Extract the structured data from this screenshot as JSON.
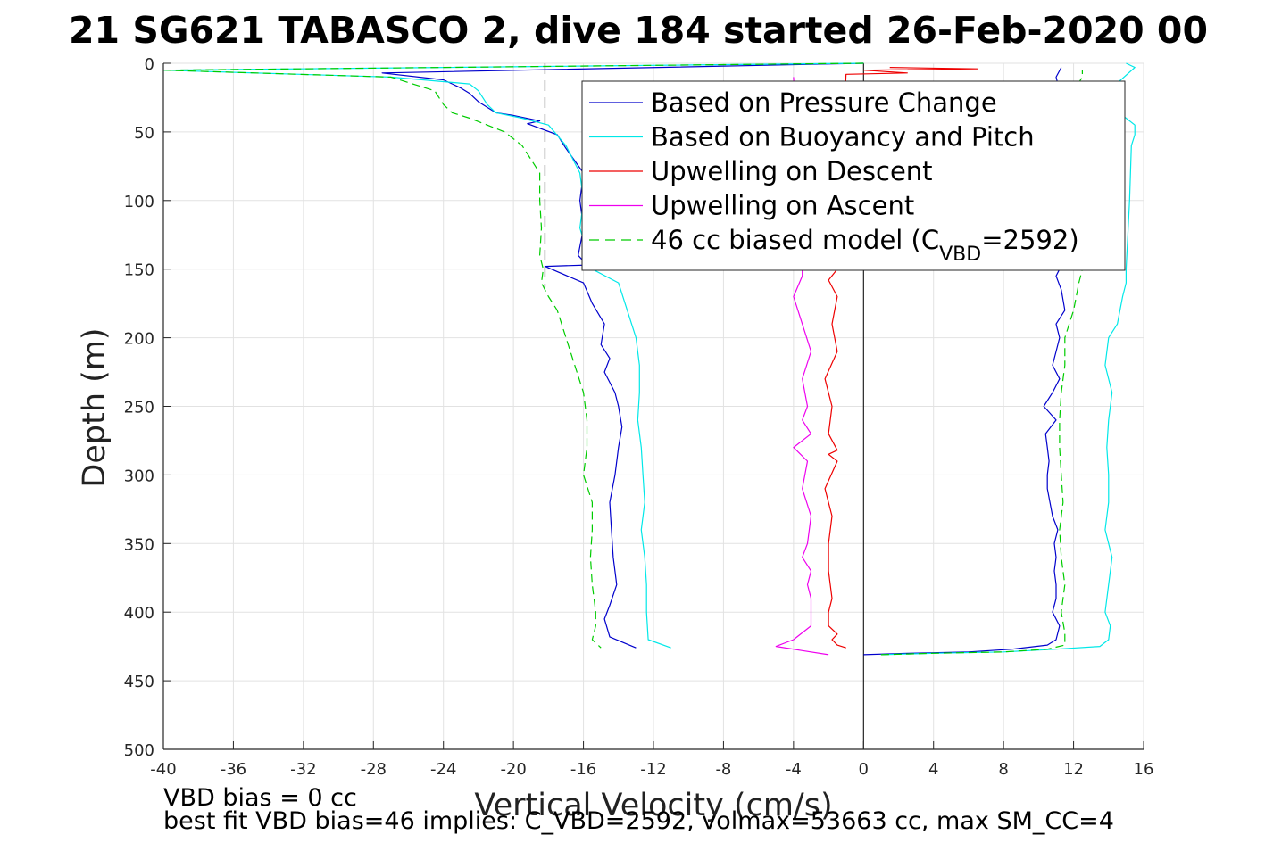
{
  "chart_data": {
    "type": "line",
    "title": "21 SG621 TABASCO 2, dive 184 started 26-Feb-2020 00",
    "xlabel": "Vertical Velocity (cm/s)",
    "ylabel": "Depth (m)",
    "xlim": [
      -40,
      16
    ],
    "ylim": [
      500,
      0
    ],
    "y_reversed": true,
    "xticks": [
      "-40",
      "-36",
      "-32",
      "-28",
      "-24",
      "-20",
      "-16",
      "-12",
      "-8",
      "-4",
      "0",
      "4",
      "8",
      "12",
      "16"
    ],
    "yticks": [
      "0",
      "50",
      "100",
      "150",
      "200",
      "250",
      "300",
      "350",
      "400",
      "450",
      "500"
    ],
    "grid": true,
    "legend_position": "top-right",
    "reference_lines": {
      "zero_x": 0,
      "dashed_x": -18.2,
      "dashed_depth_range": [
        0,
        163
      ]
    },
    "series": [
      {
        "name": "Based on Pressure Change",
        "color": "#0000cc",
        "dash": "solid",
        "descent": {
          "x": [
            0.0,
            -27.5,
            -24.0,
            -23.0,
            -22.5,
            -22.0,
            -21.5,
            -21.0,
            -20.0,
            -18.5,
            -19.2,
            -17.5,
            -17.0,
            -16.0,
            -16.2,
            -16.0,
            -16.3,
            -15.8,
            -18.2,
            -16.0,
            -15.5,
            -14.8,
            -15.0,
            -14.5,
            -14.8,
            -14.2,
            -14.0,
            -13.8,
            -14.0,
            -14.2,
            -14.5,
            -14.4,
            -14.3,
            -14.1,
            -14.5,
            -14.8,
            -14.5,
            -13.0
          ],
          "y": [
            0,
            7,
            12,
            18,
            22,
            28,
            32,
            36,
            38,
            42,
            44,
            52,
            62,
            80,
            100,
            120,
            140,
            147,
            148,
            160,
            175,
            190,
            205,
            215,
            225,
            240,
            250,
            265,
            280,
            300,
            320,
            340,
            360,
            380,
            395,
            405,
            418,
            426
          ]
        },
        "ascent": {
          "x": [
            0.0,
            2.5,
            6.0,
            8.5,
            10.5,
            11.0,
            11.2,
            10.8,
            11.0,
            11.0,
            10.9,
            11.0,
            10.9,
            11.1,
            10.8,
            10.5,
            10.5,
            10.6,
            10.5,
            10.4,
            11.0,
            10.3,
            10.8,
            11.2,
            10.8,
            11.0,
            11.2,
            11.0,
            11.5,
            11.3,
            11.0,
            11.2,
            11.0,
            11.2,
            11.0,
            11.3
          ],
          "y": [
            431,
            430,
            429,
            427,
            424,
            420,
            410,
            400,
            390,
            380,
            370,
            360,
            350,
            340,
            330,
            310,
            300,
            290,
            280,
            270,
            260,
            250,
            240,
            230,
            220,
            210,
            200,
            190,
            180,
            165,
            155,
            150,
            30,
            20,
            10,
            3
          ]
        }
      },
      {
        "name": "Based on Buoyancy and Pitch",
        "color": "#00e8e8",
        "dash": "solid",
        "descent": {
          "x": [
            0.0,
            -40.0,
            -27.0,
            -22.5,
            -22.0,
            -21.5,
            -21.0,
            -19.5,
            -18.0,
            -17.0,
            -16.2,
            -16.0,
            -16.2,
            -15.5,
            -14.0,
            -13.5,
            -13.0,
            -12.8,
            -12.8,
            -12.9,
            -12.7,
            -12.6,
            -12.5,
            -12.7,
            -12.5,
            -12.4,
            -12.4,
            -12.3,
            -11.0
          ],
          "y": [
            0,
            5,
            10,
            15,
            20,
            30,
            36,
            40,
            45,
            60,
            80,
            100,
            120,
            150,
            160,
            180,
            200,
            220,
            240,
            260,
            280,
            300,
            320,
            340,
            360,
            380,
            400,
            420,
            426
          ]
        },
        "ascent": {
          "x": [
            1.0,
            4.0,
            8.0,
            11.0,
            13.5,
            14.0,
            14.1,
            13.8,
            14.0,
            14.2,
            13.8,
            14.0,
            14.0,
            13.9,
            14.0,
            14.2,
            13.8,
            14.0,
            14.5,
            14.8,
            15.0,
            15.0,
            15.2,
            15.3,
            15.5,
            15.5,
            14.5,
            14.0,
            15.5,
            15.0
          ],
          "y": [
            431,
            430,
            429,
            427,
            425,
            420,
            410,
            400,
            380,
            360,
            340,
            320,
            300,
            280,
            260,
            240,
            220,
            200,
            190,
            170,
            160,
            150,
            100,
            60,
            52,
            45,
            35,
            20,
            3,
            0
          ]
        }
      },
      {
        "name": "Upwelling on Descent",
        "color": "#ee0000",
        "dash": "solid",
        "descent": {
          "x": [
            1.5,
            6.5,
            0.0,
            2.5,
            -1.0,
            -1.5,
            -2.0,
            -1.5,
            -1.8,
            -1.5,
            -2.2,
            -1.8,
            -2.0,
            -1.5,
            -2.0,
            -1.5,
            -2.2,
            -1.8,
            -2.0,
            -2.0,
            -1.8,
            -2.0,
            -2.0,
            -1.5,
            -1.8,
            -1.5,
            -1.0
          ],
          "y": [
            3,
            4,
            5,
            7,
            8,
            150,
            158,
            170,
            190,
            210,
            230,
            250,
            270,
            282,
            285,
            290,
            310,
            330,
            350,
            370,
            390,
            400,
            410,
            416,
            420,
            424,
            426
          ]
        }
      },
      {
        "name": "Upwelling on Ascent",
        "color": "#ee00ee",
        "dash": "solid",
        "ascent": {
          "x": [
            -2.0,
            -3.5,
            -5.0,
            -4.0,
            -3.0,
            -3.0,
            -3.0,
            -3.2,
            -3.0,
            -3.5,
            -3.2,
            -3.0,
            -3.5,
            -3.2,
            -4.0,
            -3.0,
            -3.5,
            -3.2,
            -3.5,
            -3.0,
            -3.5,
            -4.0,
            -3.5,
            -3.5,
            -4.0
          ],
          "y": [
            431,
            428,
            425,
            420,
            410,
            400,
            390,
            380,
            370,
            360,
            350,
            330,
            310,
            290,
            280,
            270,
            260,
            250,
            230,
            210,
            190,
            170,
            155,
            150,
            10
          ]
        }
      },
      {
        "name": "46 cc biased model (C",
        "name_subscript": "VBD",
        "name_suffix": "=2592)",
        "color": "#00cc00",
        "dash": "dashed",
        "descent": {
          "x": [
            0.0,
            -40.0,
            -27.0,
            -24.5,
            -24.0,
            -23.5,
            -22.5,
            -21.5,
            -20.5,
            -19.5,
            -18.5,
            -18.5,
            -18.4,
            -18.5,
            -18.3,
            -18.4,
            -18.0,
            -17.5,
            -17.0,
            -16.5,
            -16.0,
            -15.8,
            -15.8,
            -16.0,
            -15.5,
            -15.5,
            -15.6,
            -15.5,
            -15.3,
            -15.3,
            -15.5,
            -15.0
          ],
          "y": [
            0,
            5,
            10,
            20,
            30,
            36,
            40,
            45,
            50,
            60,
            80,
            100,
            120,
            140,
            150,
            160,
            170,
            180,
            200,
            220,
            240,
            260,
            280,
            300,
            320,
            340,
            360,
            380,
            400,
            410,
            420,
            426
          ]
        },
        "ascent": {
          "x": [
            1.0,
            4.0,
            8.0,
            10.5,
            11.5,
            11.5,
            11.3,
            11.5,
            11.3,
            11.2,
            11.4,
            11.3,
            11.2,
            11.2,
            11.3,
            11.5,
            11.5,
            12.0,
            12.3,
            12.5,
            12.0,
            12.5,
            12.5
          ],
          "y": [
            431,
            430,
            429,
            427,
            424,
            415,
            400,
            380,
            360,
            340,
            320,
            300,
            280,
            260,
            240,
            220,
            200,
            180,
            160,
            150,
            20,
            10,
            5
          ]
        }
      }
    ],
    "footnotes": [
      "VBD bias = 0 cc",
      "best fit VBD bias=46 implies: C_VBD=2592, volmax=53663 cc, max SM_CC=4"
    ]
  }
}
